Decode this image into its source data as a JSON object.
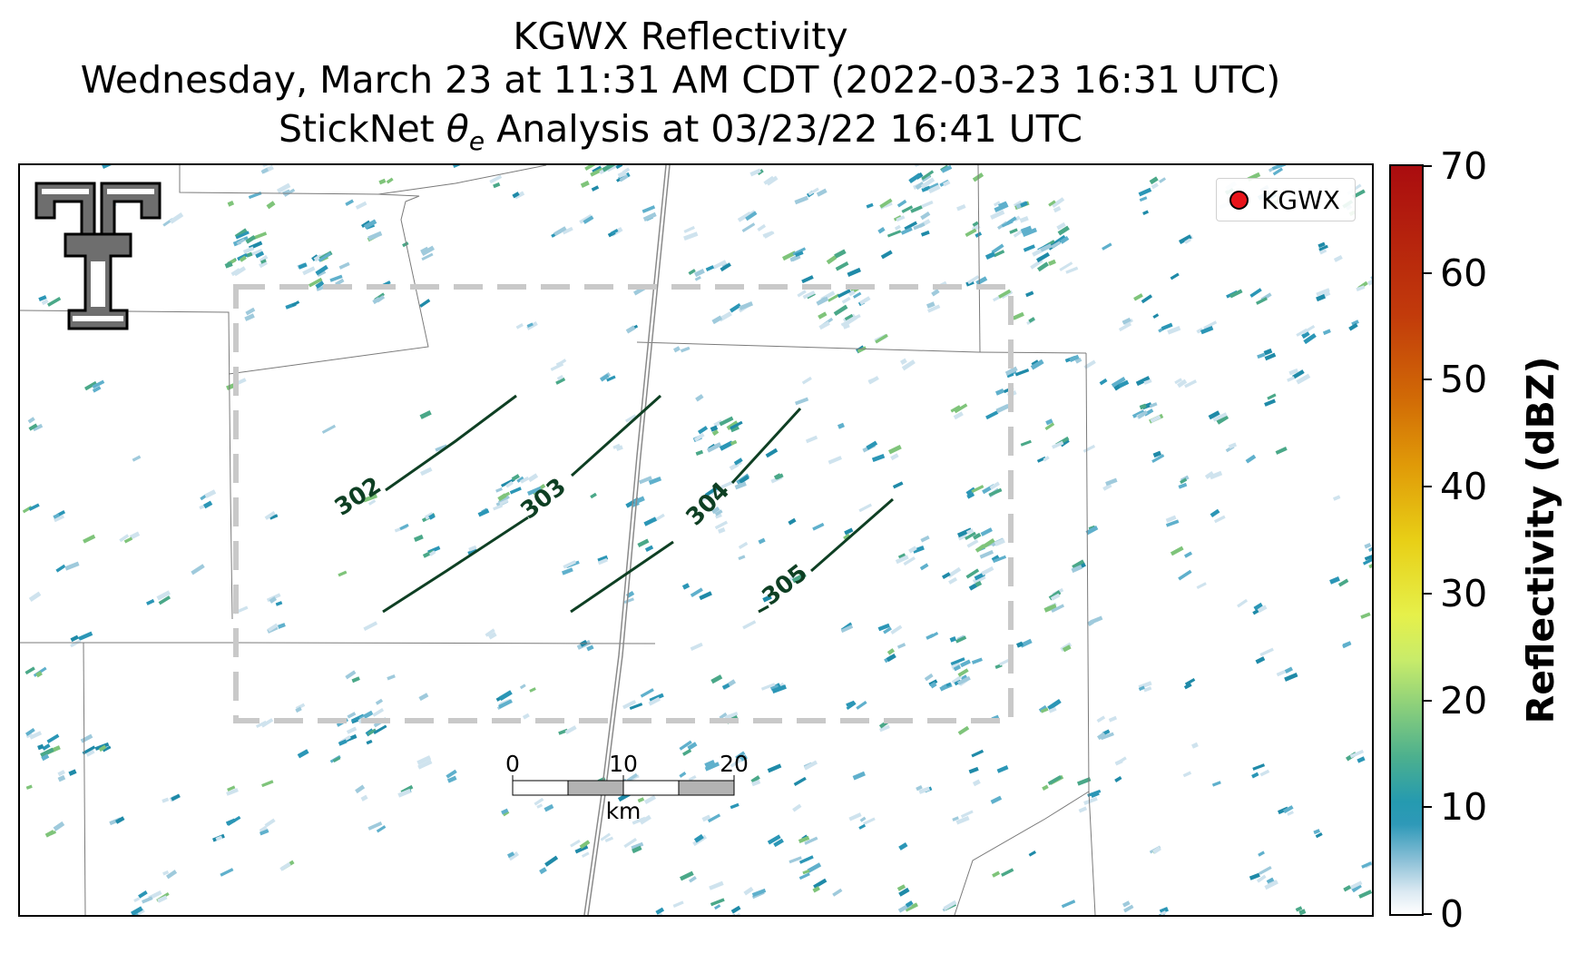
{
  "title": {
    "line1": "KGWX Reflectivity",
    "line2": "Wednesday, March 23 at 11:31 AM CDT (2022-03-23 16:31 UTC)",
    "line3_prefix": "StickNet ",
    "line3_symbol": "θ",
    "line3_subscript": "e",
    "line3_suffix": " Analysis at 03/23/22 16:41 UTC"
  },
  "legend": {
    "label": "KGWX",
    "marker_color": "#e8141a"
  },
  "colorbar": {
    "title": "Reflectivity (dBZ)",
    "ticks": [
      "0",
      "10",
      "20",
      "30",
      "40",
      "50",
      "60",
      "70"
    ],
    "min": 0,
    "max": 70
  },
  "contours": [
    {
      "label": "302"
    },
    {
      "label": "303"
    },
    {
      "label": "304"
    },
    {
      "label": "305"
    }
  ],
  "contour_color": "#0e3f23",
  "scalebar": {
    "ticks": [
      "0",
      "10",
      "20"
    ],
    "unit": "km"
  },
  "logo": {
    "icon": "double-t-logo-icon"
  },
  "echo_colors": [
    "#cfe3ee",
    "#9fcadc",
    "#5fb0cc",
    "#2b96b6",
    "#1f8aa8",
    "#4aa888",
    "#7fc47a"
  ],
  "colors": {
    "analysis_box": "#c9c9c9",
    "county_lines": "#7a7a7a",
    "highway": "#8a8a8a"
  }
}
